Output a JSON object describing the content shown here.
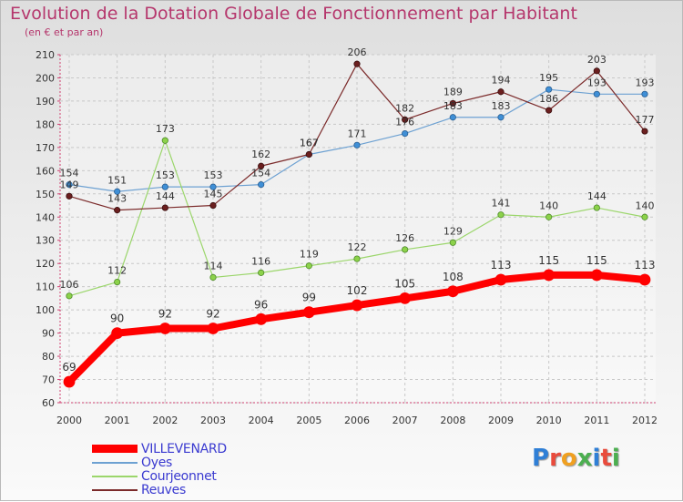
{
  "title": "Evolution de la Dotation Globale de Fonctionnement par Habitant",
  "subtitle": "(en € et par an)",
  "logo": [
    "P",
    "r",
    "o",
    "x",
    "i",
    "t",
    "i"
  ],
  "logo_colors": [
    "#2f7fd6",
    "#e94b3c",
    "#f0a020",
    "#4caf50",
    "#2f7fd6",
    "#e94b3c",
    "#4caf50"
  ],
  "chart_data": {
    "type": "line",
    "x": [
      "2000",
      "2001",
      "2002",
      "2003",
      "2004",
      "2005",
      "2006",
      "2007",
      "2008",
      "2009",
      "2010",
      "2011",
      "2012"
    ],
    "ylim": [
      60,
      210
    ],
    "yticks": [
      "60",
      "70",
      "80",
      "90",
      "100",
      "110",
      "120",
      "130",
      "140",
      "150",
      "160",
      "170",
      "180",
      "190",
      "200",
      "210"
    ],
    "grid": true,
    "legend_position": "bottom-left",
    "series": [
      {
        "name": "VILLEVENARD",
        "color": "#ff0000",
        "values": [
          69,
          90,
          92,
          92,
          96,
          99,
          102,
          105,
          108,
          113,
          115,
          115,
          113
        ]
      },
      {
        "name": "Oyes",
        "color": "#6da1d2",
        "values": [
          154,
          151,
          153,
          153,
          154,
          167,
          171,
          176,
          183,
          183,
          195,
          193,
          193
        ]
      },
      {
        "name": "Courjeonnet",
        "color": "#9bd66b",
        "values": [
          106,
          112,
          173,
          114,
          116,
          119,
          122,
          126,
          129,
          141,
          140,
          144,
          140
        ]
      },
      {
        "name": "Reuves",
        "color": "#7b2a2a",
        "values": [
          149,
          143,
          144,
          145,
          162,
          167,
          206,
          182,
          189,
          194,
          186,
          203,
          177
        ]
      }
    ]
  }
}
